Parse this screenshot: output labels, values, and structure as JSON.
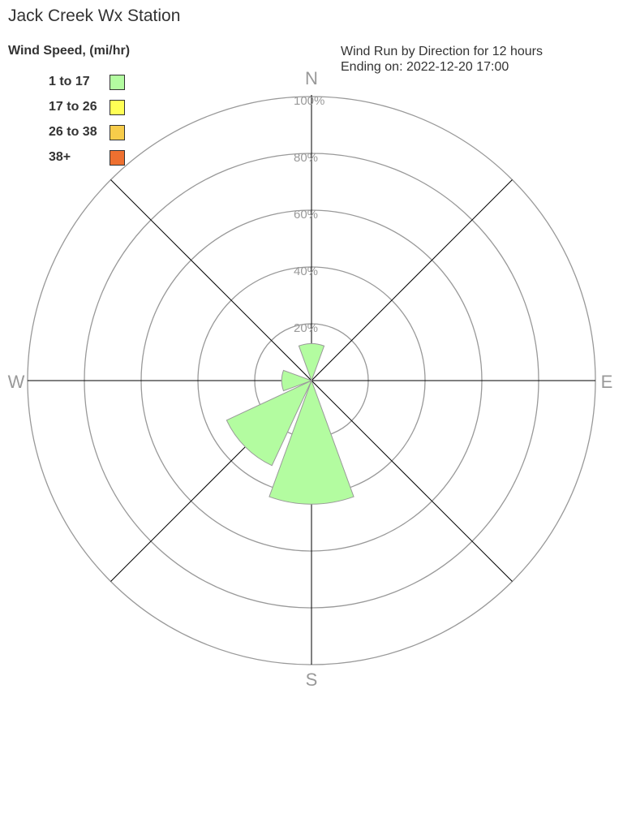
{
  "title": "Jack Creek Wx Station",
  "subtitle_line1": "Wind Run by Direction for 12 hours",
  "subtitle_line2": "Ending on: 2022-12-20 17:00",
  "chart_data": {
    "type": "wind-rose",
    "legend_title": "Wind Speed, (mi/hr)",
    "legend": [
      {
        "label": "1 to 17",
        "color": "#b3fca0"
      },
      {
        "label": "17 to 26",
        "color": "#ffff55"
      },
      {
        "label": "26 to 38",
        "color": "#f7cc4a"
      },
      {
        "label": "38+",
        "color": "#ee7030"
      }
    ],
    "compass_labels": [
      "N",
      "E",
      "S",
      "W"
    ],
    "radial_ticks": [
      "20%",
      "40%",
      "60%",
      "80%",
      "100%"
    ],
    "radial_range": [
      0,
      100
    ],
    "directions": [
      "N",
      "NE",
      "E",
      "SE",
      "S",
      "SW",
      "W",
      "NW"
    ],
    "series": [
      {
        "label": "1 to 17",
        "values": [
          13,
          0,
          0,
          0,
          43.5,
          33,
          10.5,
          0
        ]
      },
      {
        "label": "17 to 26",
        "values": [
          0,
          0,
          0,
          0,
          0,
          0,
          0,
          0
        ]
      },
      {
        "label": "26 to 38",
        "values": [
          0,
          0,
          0,
          0,
          0,
          0,
          0,
          0
        ]
      },
      {
        "label": "38+",
        "values": [
          0,
          0,
          0,
          0,
          0,
          0,
          0,
          0
        ]
      }
    ]
  }
}
